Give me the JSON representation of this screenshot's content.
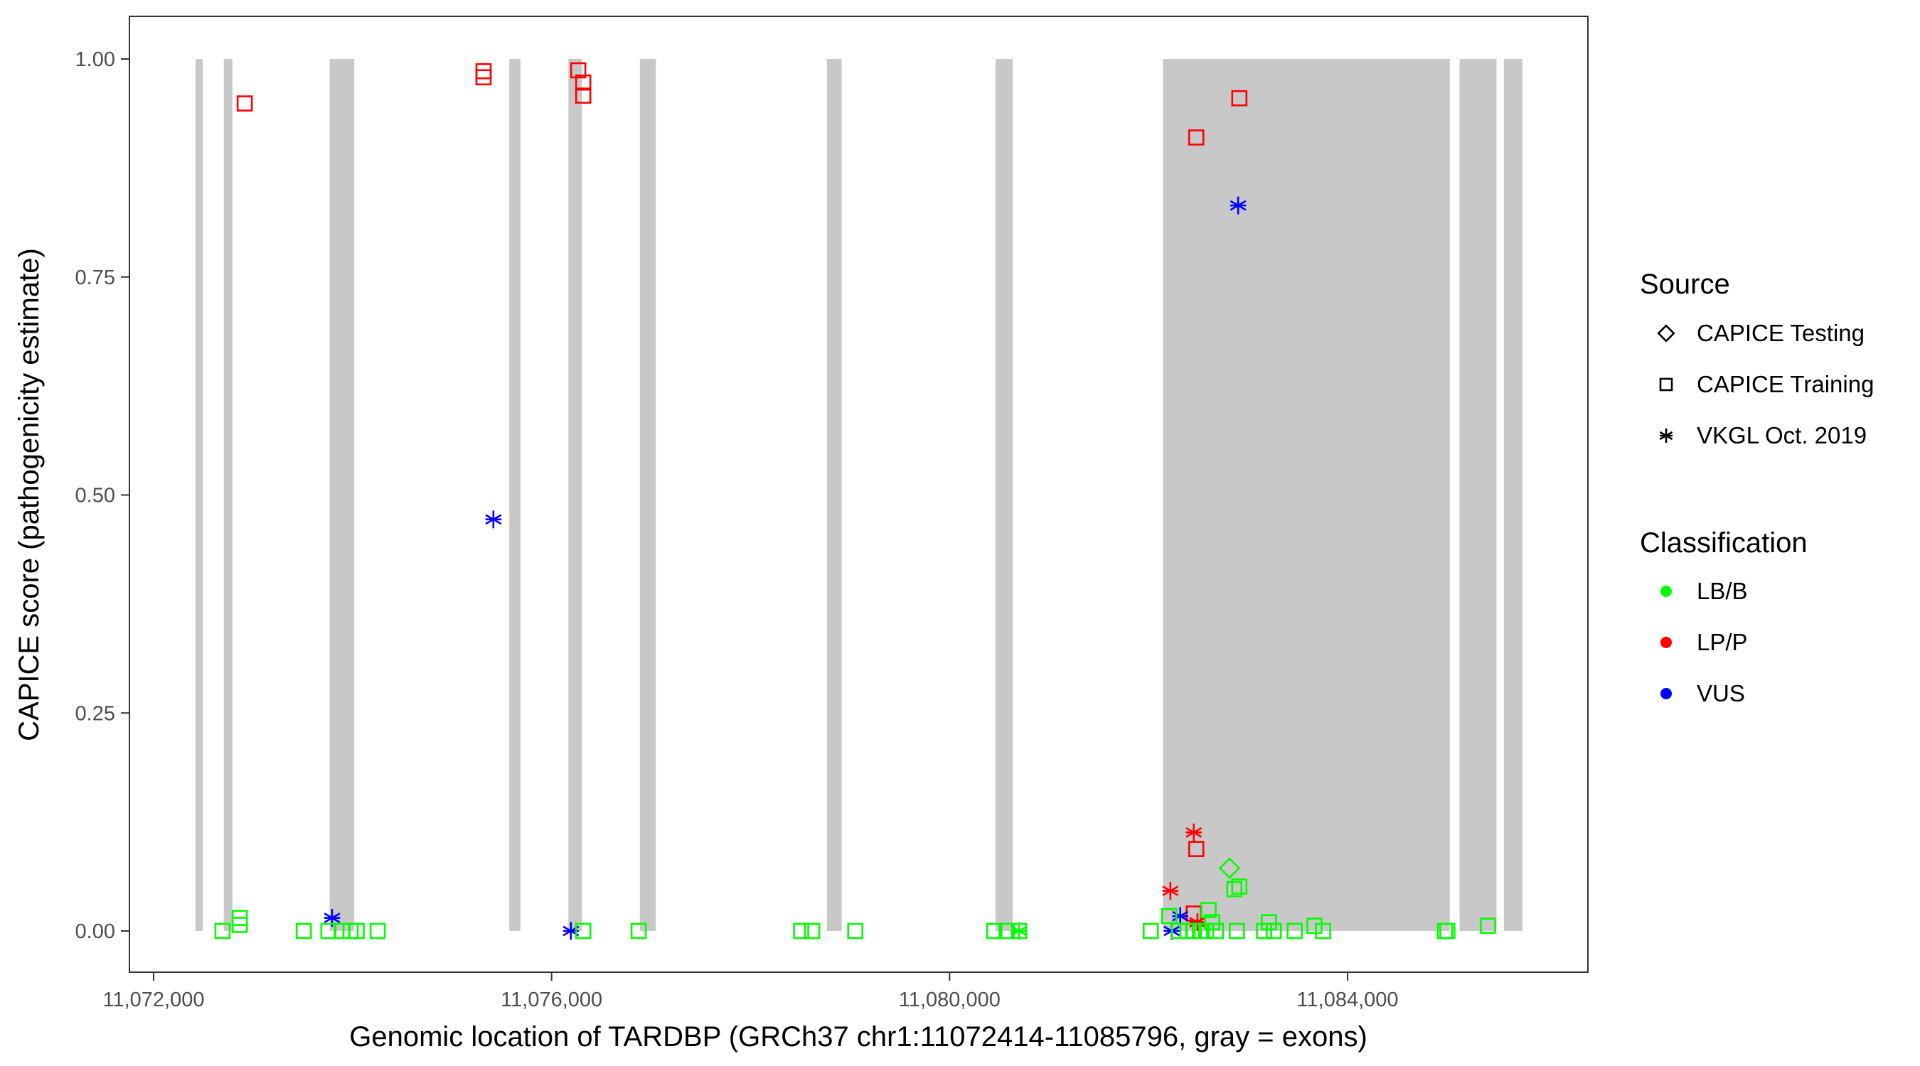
{
  "chart_data": {
    "type": "scatter",
    "xlabel": "Genomic location of TARDBP (GRCh37 chr1:11072414-11085796, gray = exons)",
    "ylabel": "CAPICE score (pathogenicity estimate)",
    "xlim": [
      11071850,
      11086300
    ],
    "ylim": [
      -0.045,
      1.045
    ],
    "x_ticks": [
      11072000,
      11076000,
      11080000,
      11084000
    ],
    "x_tick_labels": [
      "11,072,000",
      "11,076,000",
      "11,080,000",
      "11,084,000"
    ],
    "y_ticks": [
      0,
      0.25,
      0.5,
      0.75,
      1.0
    ],
    "y_tick_labels": [
      "0.00",
      "0.25",
      "0.50",
      "0.75",
      "1.00"
    ],
    "grid": false,
    "exons": [
      [
        11072421,
        11072495
      ],
      [
        11072705,
        11072792
      ],
      [
        11073769,
        11074017
      ],
      [
        11075575,
        11075687
      ],
      [
        11076169,
        11076305
      ],
      [
        11076887,
        11077048
      ],
      [
        11078767,
        11078916
      ],
      [
        11080462,
        11080635
      ],
      [
        11082145,
        11085027
      ],
      [
        11085126,
        11085497
      ],
      [
        11085571,
        11085757
      ]
    ],
    "exon_color": "#c8c8c8",
    "legend": {
      "placement": "right",
      "source_title": "Source",
      "sources": [
        {
          "name": "CAPICE Testing",
          "shape": "diamond"
        },
        {
          "name": "CAPICE Training",
          "shape": "square"
        },
        {
          "name": "VKGL Oct. 2019",
          "shape": "asterisk"
        }
      ],
      "class_title": "Classification",
      "classes": [
        {
          "name": "LB/B",
          "color": "#00ff00"
        },
        {
          "name": "LP/P",
          "color": "#ff0000"
        },
        {
          "name": "VUS",
          "color": "#0000ff"
        }
      ]
    },
    "points": [
      {
        "x": 11072916,
        "y": 0.949,
        "source": "CAPICE Training",
        "cls": "LP/P"
      },
      {
        "x": 11075316,
        "y": 0.986,
        "source": "CAPICE Training",
        "cls": "LP/P"
      },
      {
        "x": 11075316,
        "y": 0.979,
        "source": "CAPICE Training",
        "cls": "LP/P"
      },
      {
        "x": 11076268,
        "y": 0.987,
        "source": "CAPICE Training",
        "cls": "LP/P"
      },
      {
        "x": 11076318,
        "y": 0.973,
        "source": "CAPICE Training",
        "cls": "LP/P"
      },
      {
        "x": 11076318,
        "y": 0.958,
        "source": "CAPICE Training",
        "cls": "LP/P"
      },
      {
        "x": 11082479,
        "y": 0.91,
        "source": "CAPICE Training",
        "cls": "LP/P"
      },
      {
        "x": 11082912,
        "y": 0.955,
        "source": "CAPICE Training",
        "cls": "LP/P"
      },
      {
        "x": 11082479,
        "y": 0.094,
        "source": "CAPICE Training",
        "cls": "LP/P"
      },
      {
        "x": 11082454,
        "y": 0.02,
        "source": "CAPICE Training",
        "cls": "LP/P"
      },
      {
        "x": 11082454,
        "y": 0.113,
        "source": "VKGL Oct. 2019",
        "cls": "LP/P"
      },
      {
        "x": 11082219,
        "y": 0.046,
        "source": "VKGL Oct. 2019",
        "cls": "LP/P"
      },
      {
        "x": 11082491,
        "y": 0.01,
        "source": "VKGL Oct. 2019",
        "cls": "LP/P"
      },
      {
        "x": 11082900,
        "y": 0.832,
        "source": "VKGL Oct. 2019",
        "cls": "VUS"
      },
      {
        "x": 11075415,
        "y": 0.472,
        "source": "VKGL Oct. 2019",
        "cls": "VUS"
      },
      {
        "x": 11073794,
        "y": 0.015,
        "source": "VKGL Oct. 2019",
        "cls": "VUS"
      },
      {
        "x": 11076194,
        "y": 0.0,
        "source": "VKGL Oct. 2019",
        "cls": "VUS"
      },
      {
        "x": 11082232,
        "y": 0.0,
        "source": "VKGL Oct. 2019",
        "cls": "VUS"
      },
      {
        "x": 11082318,
        "y": 0.017,
        "source": "VKGL Oct. 2019",
        "cls": "VUS"
      },
      {
        "x": 11082813,
        "y": 0.072,
        "source": "CAPICE Testing",
        "cls": "LB/B"
      },
      {
        "x": 11080698,
        "y": 0.0,
        "source": "VKGL Oct. 2019",
        "cls": "LB/B"
      },
      {
        "x": 11072693,
        "y": 0.0,
        "source": "CAPICE Training",
        "cls": "LB/B"
      },
      {
        "x": 11072866,
        "y": 0.015,
        "source": "CAPICE Training",
        "cls": "LB/B"
      },
      {
        "x": 11072866,
        "y": 0.007,
        "source": "CAPICE Training",
        "cls": "LB/B"
      },
      {
        "x": 11073509,
        "y": 0.0,
        "source": "CAPICE Training",
        "cls": "LB/B"
      },
      {
        "x": 11073757,
        "y": 0.0,
        "source": "CAPICE Training",
        "cls": "LB/B"
      },
      {
        "x": 11073893,
        "y": 0.0,
        "source": "CAPICE Training",
        "cls": "LB/B"
      },
      {
        "x": 11073980,
        "y": 0.0,
        "source": "CAPICE Training",
        "cls": "LB/B"
      },
      {
        "x": 11074041,
        "y": 0.0,
        "source": "CAPICE Training",
        "cls": "LB/B"
      },
      {
        "x": 11074252,
        "y": 0.0,
        "source": "CAPICE Training",
        "cls": "LB/B"
      },
      {
        "x": 11076318,
        "y": 0.0,
        "source": "CAPICE Training",
        "cls": "LB/B"
      },
      {
        "x": 11076875,
        "y": 0.0,
        "source": "CAPICE Training",
        "cls": "LB/B"
      },
      {
        "x": 11078508,
        "y": 0.0,
        "source": "CAPICE Training",
        "cls": "LB/B"
      },
      {
        "x": 11078619,
        "y": 0.0,
        "source": "CAPICE Training",
        "cls": "LB/B"
      },
      {
        "x": 11079052,
        "y": 0.0,
        "source": "CAPICE Training",
        "cls": "LB/B"
      },
      {
        "x": 11080450,
        "y": 0.0,
        "source": "CAPICE Training",
        "cls": "LB/B"
      },
      {
        "x": 11080574,
        "y": 0.0,
        "source": "CAPICE Training",
        "cls": "LB/B"
      },
      {
        "x": 11080698,
        "y": 0.0,
        "source": "CAPICE Training",
        "cls": "LB/B"
      },
      {
        "x": 11082022,
        "y": 0.0,
        "source": "CAPICE Training",
        "cls": "LB/B"
      },
      {
        "x": 11082207,
        "y": 0.017,
        "source": "CAPICE Training",
        "cls": "LB/B"
      },
      {
        "x": 11082306,
        "y": 0.0,
        "source": "CAPICE Training",
        "cls": "LB/B"
      },
      {
        "x": 11082392,
        "y": 0.0,
        "source": "CAPICE Training",
        "cls": "LB/B"
      },
      {
        "x": 11082454,
        "y": 0.0,
        "source": "CAPICE Training",
        "cls": "LB/B"
      },
      {
        "x": 11082516,
        "y": 0.0,
        "source": "CAPICE Training",
        "cls": "LB/B"
      },
      {
        "x": 11082578,
        "y": 0.0,
        "source": "CAPICE Training",
        "cls": "LB/B"
      },
      {
        "x": 11082603,
        "y": 0.024,
        "source": "CAPICE Training",
        "cls": "LB/B"
      },
      {
        "x": 11082640,
        "y": 0.01,
        "source": "CAPICE Training",
        "cls": "LB/B"
      },
      {
        "x": 11082677,
        "y": 0.0,
        "source": "CAPICE Training",
        "cls": "LB/B"
      },
      {
        "x": 11082862,
        "y": 0.048,
        "source": "CAPICE Training",
        "cls": "LB/B"
      },
      {
        "x": 11082912,
        "y": 0.051,
        "source": "CAPICE Training",
        "cls": "LB/B"
      },
      {
        "x": 11082887,
        "y": 0.0,
        "source": "CAPICE Training",
        "cls": "LB/B"
      },
      {
        "x": 11083160,
        "y": 0.0,
        "source": "CAPICE Training",
        "cls": "LB/B"
      },
      {
        "x": 11083209,
        "y": 0.01,
        "source": "CAPICE Training",
        "cls": "LB/B"
      },
      {
        "x": 11083259,
        "y": 0.0,
        "source": "CAPICE Training",
        "cls": "LB/B"
      },
      {
        "x": 11083469,
        "y": 0.0,
        "source": "CAPICE Training",
        "cls": "LB/B"
      },
      {
        "x": 11083667,
        "y": 0.006,
        "source": "CAPICE Training",
        "cls": "LB/B"
      },
      {
        "x": 11083754,
        "y": 0.0,
        "source": "CAPICE Training",
        "cls": "LB/B"
      },
      {
        "x": 11084978,
        "y": 0.0,
        "source": "CAPICE Training",
        "cls": "LB/B"
      },
      {
        "x": 11085003,
        "y": 0.0,
        "source": "CAPICE Training",
        "cls": "LB/B"
      },
      {
        "x": 11085411,
        "y": 0.006,
        "source": "CAPICE Training",
        "cls": "LB/B"
      }
    ]
  }
}
